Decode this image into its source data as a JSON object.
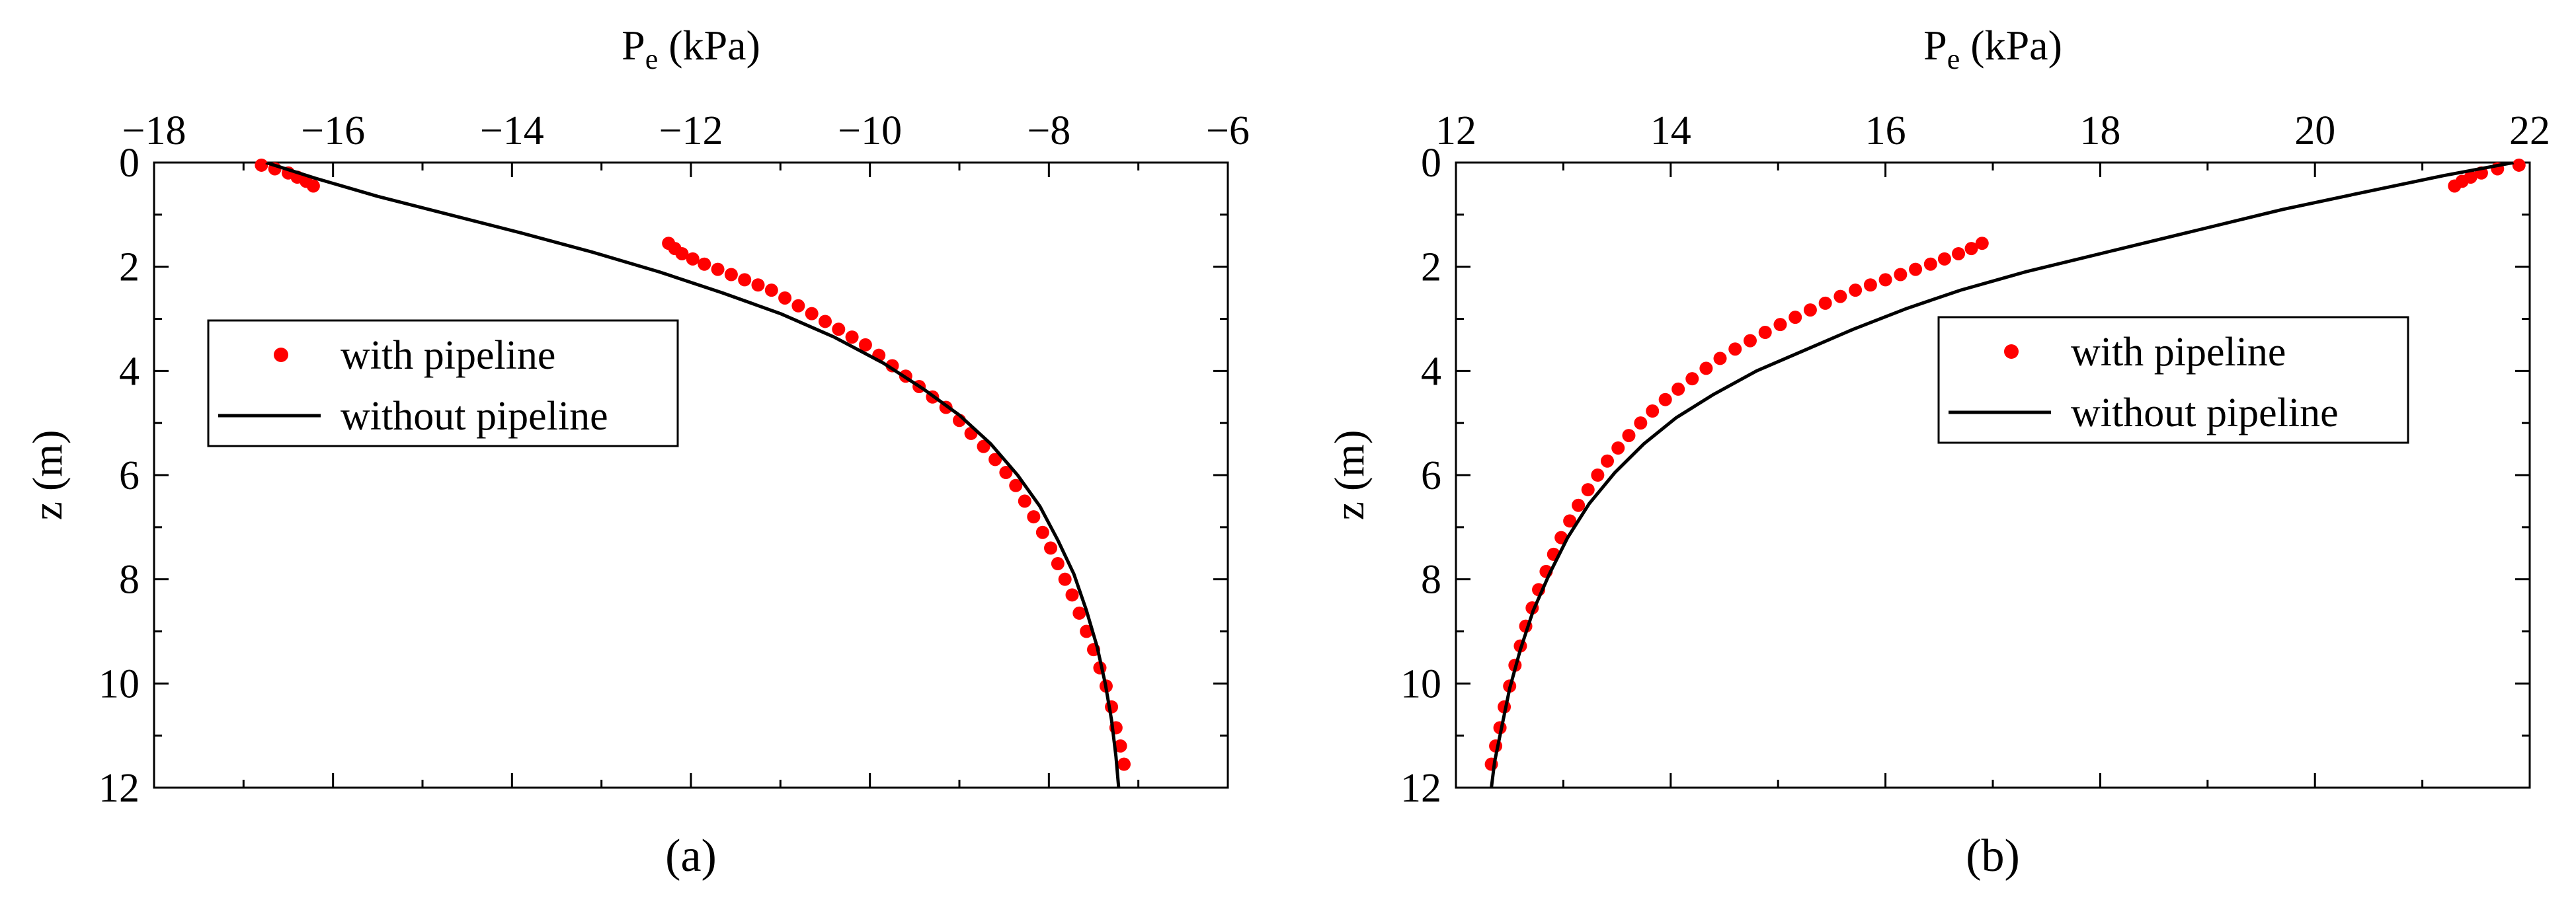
{
  "chart_data": [
    {
      "type": "scatter",
      "panel_label": "(a)",
      "xlabel_main": "P",
      "xlabel_sub": "e",
      "xlabel_unit": " (kPa)",
      "ylabel": "z (m)",
      "xlim": [
        -18,
        -6
      ],
      "ylim": [
        0,
        12
      ],
      "y_inverted": true,
      "x_axis_position": "top",
      "x_ticks": [
        -18,
        -16,
        -14,
        -12,
        -10,
        -8,
        -6
      ],
      "y_ticks": [
        0,
        2,
        4,
        6,
        8,
        10,
        12
      ],
      "legend_position": "middle-left",
      "series": [
        {
          "name": "with pipeline",
          "style": "markers",
          "color": "#ff0000",
          "points": [
            [
              -16.8,
              0.05
            ],
            [
              -16.65,
              0.12
            ],
            [
              -16.5,
              0.2
            ],
            [
              -16.4,
              0.28
            ],
            [
              -16.3,
              0.36
            ],
            [
              -16.22,
              0.45
            ],
            [
              -12.25,
              1.55
            ],
            [
              -12.18,
              1.65
            ],
            [
              -12.1,
              1.75
            ],
            [
              -11.98,
              1.85
            ],
            [
              -11.85,
              1.95
            ],
            [
              -11.7,
              2.05
            ],
            [
              -11.55,
              2.15
            ],
            [
              -11.4,
              2.25
            ],
            [
              -11.25,
              2.35
            ],
            [
              -11.1,
              2.45
            ],
            [
              -10.95,
              2.6
            ],
            [
              -10.8,
              2.75
            ],
            [
              -10.65,
              2.9
            ],
            [
              -10.5,
              3.05
            ],
            [
              -10.35,
              3.2
            ],
            [
              -10.2,
              3.35
            ],
            [
              -10.05,
              3.5
            ],
            [
              -9.9,
              3.7
            ],
            [
              -9.75,
              3.9
            ],
            [
              -9.6,
              4.1
            ],
            [
              -9.45,
              4.3
            ],
            [
              -9.3,
              4.5
            ],
            [
              -9.15,
              4.7
            ],
            [
              -9.0,
              4.95
            ],
            [
              -8.87,
              5.2
            ],
            [
              -8.73,
              5.45
            ],
            [
              -8.6,
              5.7
            ],
            [
              -8.48,
              5.95
            ],
            [
              -8.37,
              6.2
            ],
            [
              -8.27,
              6.5
            ],
            [
              -8.17,
              6.8
            ],
            [
              -8.07,
              7.1
            ],
            [
              -7.98,
              7.4
            ],
            [
              -7.9,
              7.7
            ],
            [
              -7.82,
              8.0
            ],
            [
              -7.74,
              8.3
            ],
            [
              -7.66,
              8.65
            ],
            [
              -7.58,
              9.0
            ],
            [
              -7.5,
              9.35
            ],
            [
              -7.43,
              9.7
            ],
            [
              -7.36,
              10.05
            ],
            [
              -7.3,
              10.45
            ],
            [
              -7.25,
              10.85
            ],
            [
              -7.2,
              11.2
            ],
            [
              -7.16,
              11.55
            ]
          ]
        },
        {
          "name": "without pipeline",
          "style": "line",
          "color": "#000000",
          "points": [
            [
              -16.75,
              0.0
            ],
            [
              -16.2,
              0.3
            ],
            [
              -15.5,
              0.65
            ],
            [
              -14.7,
              1.0
            ],
            [
              -13.9,
              1.35
            ],
            [
              -13.1,
              1.72
            ],
            [
              -12.35,
              2.1
            ],
            [
              -11.65,
              2.5
            ],
            [
              -11.0,
              2.9
            ],
            [
              -10.4,
              3.35
            ],
            [
              -9.85,
              3.85
            ],
            [
              -9.4,
              4.35
            ],
            [
              -9.0,
              4.85
            ],
            [
              -8.65,
              5.4
            ],
            [
              -8.35,
              6.0
            ],
            [
              -8.1,
              6.6
            ],
            [
              -7.9,
              7.25
            ],
            [
              -7.72,
              7.9
            ],
            [
              -7.58,
              8.6
            ],
            [
              -7.46,
              9.3
            ],
            [
              -7.37,
              10.0
            ],
            [
              -7.3,
              10.7
            ],
            [
              -7.25,
              11.4
            ],
            [
              -7.22,
              12.0
            ]
          ]
        }
      ]
    },
    {
      "type": "scatter",
      "panel_label": "(b)",
      "xlabel_main": "P",
      "xlabel_sub": "e",
      "xlabel_unit": " (kPa)",
      "ylabel": "z (m)",
      "xlim": [
        12,
        22
      ],
      "ylim": [
        0,
        12
      ],
      "y_inverted": true,
      "x_axis_position": "top",
      "x_ticks": [
        12,
        14,
        16,
        18,
        20,
        22
      ],
      "y_ticks": [
        0,
        2,
        4,
        6,
        8,
        10,
        12
      ],
      "legend_position": "middle-right",
      "series": [
        {
          "name": "with pipeline",
          "style": "markers",
          "color": "#ff0000",
          "points": [
            [
              21.9,
              0.05
            ],
            [
              21.7,
              0.12
            ],
            [
              21.55,
              0.2
            ],
            [
              21.45,
              0.28
            ],
            [
              21.37,
              0.36
            ],
            [
              21.3,
              0.45
            ],
            [
              16.9,
              1.55
            ],
            [
              16.8,
              1.65
            ],
            [
              16.68,
              1.75
            ],
            [
              16.55,
              1.85
            ],
            [
              16.42,
              1.95
            ],
            [
              16.28,
              2.05
            ],
            [
              16.14,
              2.15
            ],
            [
              16.0,
              2.25
            ],
            [
              15.86,
              2.35
            ],
            [
              15.72,
              2.45
            ],
            [
              15.58,
              2.57
            ],
            [
              15.44,
              2.7
            ],
            [
              15.3,
              2.83
            ],
            [
              15.16,
              2.97
            ],
            [
              15.02,
              3.11
            ],
            [
              14.88,
              3.26
            ],
            [
              14.74,
              3.42
            ],
            [
              14.6,
              3.58
            ],
            [
              14.46,
              3.76
            ],
            [
              14.33,
              3.95
            ],
            [
              14.2,
              4.15
            ],
            [
              14.07,
              4.35
            ],
            [
              13.95,
              4.55
            ],
            [
              13.83,
              4.77
            ],
            [
              13.72,
              5.0
            ],
            [
              13.61,
              5.24
            ],
            [
              13.51,
              5.48
            ],
            [
              13.41,
              5.73
            ],
            [
              13.32,
              6.0
            ],
            [
              13.23,
              6.28
            ],
            [
              13.14,
              6.58
            ],
            [
              13.06,
              6.88
            ],
            [
              12.98,
              7.2
            ],
            [
              12.91,
              7.52
            ],
            [
              12.84,
              7.85
            ],
            [
              12.77,
              8.2
            ],
            [
              12.71,
              8.55
            ],
            [
              12.65,
              8.9
            ],
            [
              12.6,
              9.28
            ],
            [
              12.55,
              9.65
            ],
            [
              12.5,
              10.05
            ],
            [
              12.45,
              10.45
            ],
            [
              12.41,
              10.85
            ],
            [
              12.37,
              11.2
            ],
            [
              12.33,
              11.55
            ]
          ]
        },
        {
          "name": "without pipeline",
          "style": "line",
          "color": "#000000",
          "points": [
            [
              21.85,
              0.0
            ],
            [
              21.2,
              0.25
            ],
            [
              20.5,
              0.55
            ],
            [
              19.7,
              0.9
            ],
            [
              18.9,
              1.3
            ],
            [
              18.1,
              1.7
            ],
            [
              17.3,
              2.1
            ],
            [
              16.7,
              2.45
            ],
            [
              16.2,
              2.8
            ],
            [
              15.7,
              3.2
            ],
            [
              15.25,
              3.6
            ],
            [
              14.8,
              4.0
            ],
            [
              14.4,
              4.45
            ],
            [
              14.05,
              4.9
            ],
            [
              13.75,
              5.4
            ],
            [
              13.48,
              5.95
            ],
            [
              13.24,
              6.55
            ],
            [
              13.04,
              7.2
            ],
            [
              12.87,
              7.9
            ],
            [
              12.72,
              8.6
            ],
            [
              12.6,
              9.35
            ],
            [
              12.5,
              10.1
            ],
            [
              12.42,
              10.9
            ],
            [
              12.36,
              11.5
            ],
            [
              12.33,
              12.0
            ]
          ]
        }
      ]
    }
  ]
}
